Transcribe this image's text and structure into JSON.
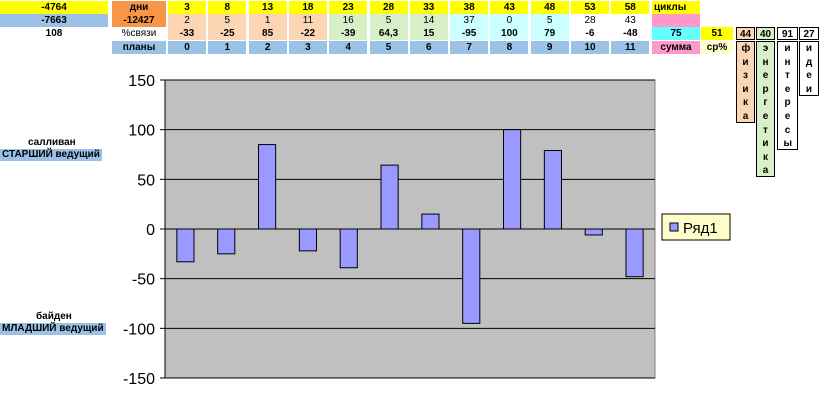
{
  "colors": {
    "yellow": "#ffff00",
    "orange": "#f79646",
    "lightblue": "#9bc2e6",
    "peach": "#fcd5b4",
    "lightgreen": "#d8f0c8",
    "cyan": "#66ffff",
    "magenta": "#ff99cc",
    "lightyellow": "#ffffcc",
    "plotbg": "#c0c0c0",
    "bar": "#9999ff"
  },
  "table": {
    "row1": {
      "left": "-4764",
      "label": "дни",
      "values": [
        "3",
        "8",
        "13",
        "18",
        "23",
        "28",
        "33",
        "38",
        "43",
        "48",
        "53",
        "58"
      ],
      "tail": "циклы"
    },
    "row2": {
      "left": "-7663",
      "label": "-12427",
      "values": [
        "2",
        "5",
        "1",
        "11",
        "16",
        "5",
        "14",
        "37",
        "0",
        "5",
        "28",
        "43"
      ]
    },
    "row3": {
      "left": "108",
      "label": "%связи",
      "values": [
        "-33",
        "-25",
        "85",
        "-22",
        "-39",
        "64,3",
        "15",
        "-95",
        "100",
        "79",
        "-6",
        "-48"
      ],
      "sum": "75",
      "avg_value": "51",
      "v1": "44",
      "v2": "40",
      "v3": "91",
      "v4": "27"
    },
    "row4": {
      "label": "планы",
      "values": [
        "0",
        "1",
        "2",
        "3",
        "4",
        "5",
        "6",
        "7",
        "8",
        "9",
        "10",
        "11"
      ],
      "sum_label": "сумма",
      "avg_label": "ср%"
    }
  },
  "vertical_columns": [
    {
      "text": "физика"
    },
    {
      "text": "энергетика"
    },
    {
      "text": "интересы"
    },
    {
      "text": "идеи"
    }
  ],
  "side_labels": {
    "top_line1": "салливан",
    "top_line2": "СТАРШИЙ ведущий",
    "bottom_line1": "байден",
    "bottom_line2": "МЛАДШИЙ ведущий"
  },
  "chart_data": {
    "type": "bar",
    "categories": [
      "0",
      "1",
      "2",
      "3",
      "4",
      "5",
      "6",
      "7",
      "8",
      "9",
      "10",
      "11"
    ],
    "series": [
      {
        "name": "Ряд1",
        "values": [
          -33,
          -25,
          85,
          -22,
          -39,
          64.3,
          15,
          -95,
          100,
          79,
          -6,
          -48
        ]
      }
    ],
    "ylim": [
      -150,
      150
    ],
    "yticks": [
      150,
      100,
      50,
      0,
      -50,
      -100,
      -150
    ],
    "gridlines": true,
    "legend": "right",
    "xlabel": "",
    "ylabel": "",
    "title": ""
  }
}
